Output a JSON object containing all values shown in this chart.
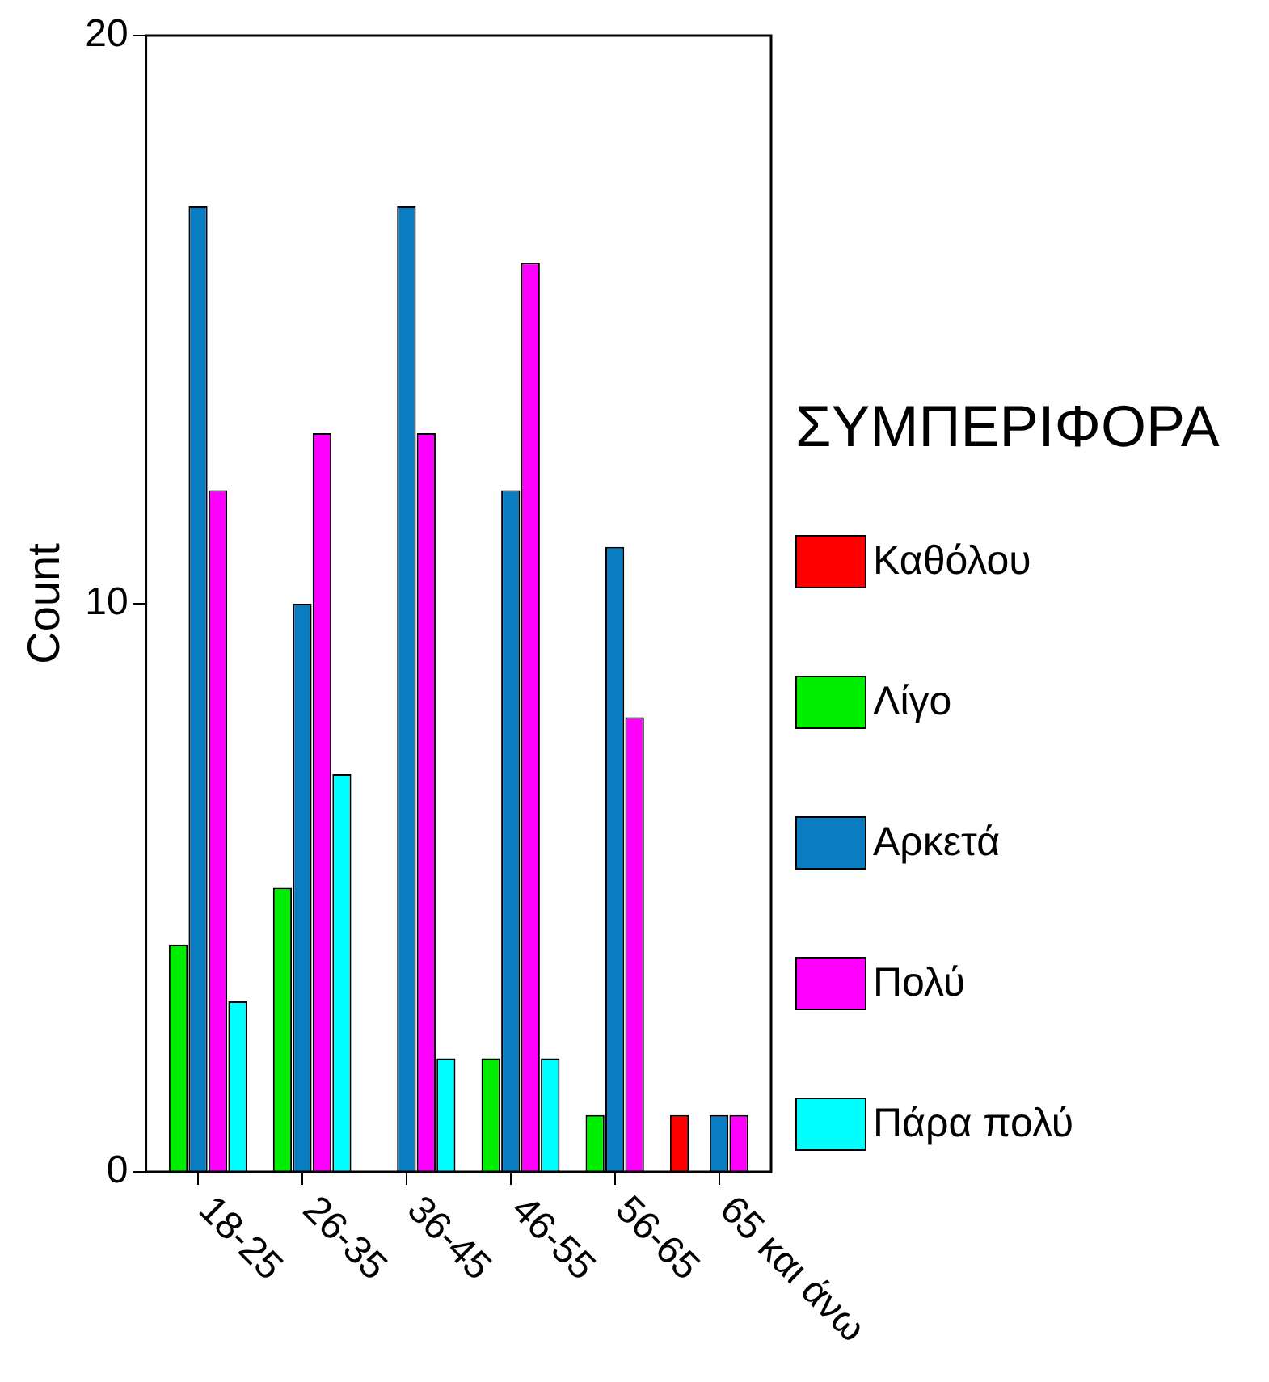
{
  "chart_data": {
    "type": "bar",
    "ylabel": "Count",
    "legend_title": "ΣΥΜΠΕΡΙΦΟΡΑ",
    "legend": "right",
    "grid": false,
    "categories": [
      "18-25",
      "26-35",
      "36-45",
      "46-55",
      "56-65",
      "65 και άνω"
    ],
    "ylim": [
      0,
      20
    ],
    "yticks": [
      0,
      10,
      20
    ],
    "series": [
      {
        "name": "Καθόλου",
        "color": "#ff0000",
        "values": [
          null,
          null,
          null,
          null,
          null,
          1
        ]
      },
      {
        "name": "Λίγο",
        "color": "#00ee00",
        "values": [
          4,
          5,
          null,
          2,
          1,
          null
        ]
      },
      {
        "name": "Αρκετά",
        "color": "#0a7dc2",
        "values": [
          17,
          10,
          17,
          12,
          11,
          1
        ]
      },
      {
        "name": "Πολύ",
        "color": "#ff00ff",
        "values": [
          12,
          13,
          13,
          16,
          8,
          1
        ]
      },
      {
        "name": "Πάρα πολύ",
        "color": "#00ffff",
        "values": [
          3,
          7,
          2,
          2,
          null,
          null
        ]
      }
    ]
  }
}
